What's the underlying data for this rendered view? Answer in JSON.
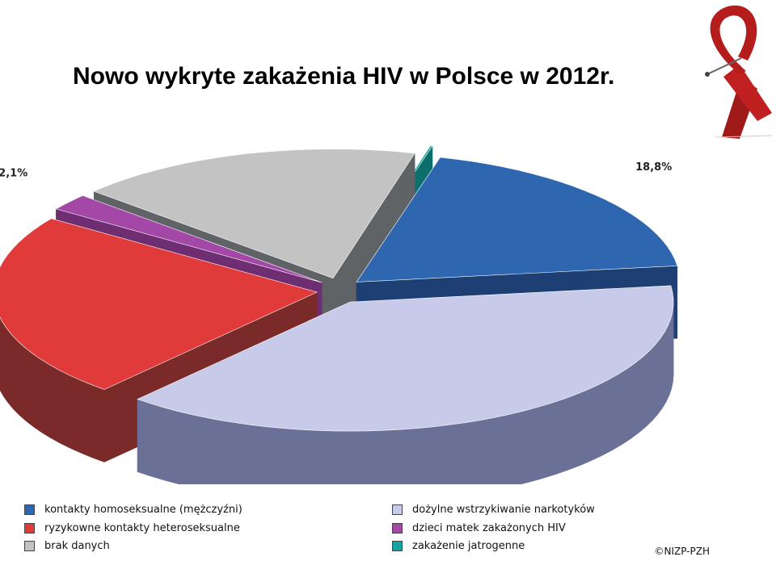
{
  "title": "Nowo wykryte zakażenia HIV w Polsce w 2012r.",
  "source": "©NIZP-PZH",
  "ribbon_icon": "aids-ribbon-icon",
  "chart_data": {
    "type": "pie",
    "three_d": true,
    "exploded": true,
    "unit": "%",
    "slices": [
      {
        "key": "homo",
        "label": "kontakty homoseksualne (mężczyźni)",
        "value": 18.8,
        "value_label": "18,8%",
        "color": "#2e67b0",
        "side_color": "#1d3f73"
      },
      {
        "key": "drugs",
        "label": "dożylne wstrzykiwanie narkotyków",
        "value": 38.4,
        "value_label": "38,4%",
        "color": "#c7cbe9",
        "side_color": "#6b7196"
      },
      {
        "key": "hetero",
        "label": "ryzykowne kontakty heteroseksualne",
        "value": 23.2,
        "value_label": "23,2%",
        "color": "#e03a3a",
        "side_color": "#7b2a2a"
      },
      {
        "key": "children",
        "label": "dzieci matek zakażonych HIV",
        "value": 2.1,
        "value_label": "2,1%",
        "color": "#a448a8",
        "side_color": "#6f2d72"
      },
      {
        "key": "nodata",
        "label": "brak danych",
        "value": 17.3,
        "value_label": "17,3%",
        "color": "#c3c3c3",
        "side_color": "#5f6366"
      },
      {
        "key": "iatro",
        "label": "zakażenie jatrogenne",
        "value": 0.1,
        "value_label": "0,1%",
        "color": "#14a5a0",
        "side_color": "#0c6f6c"
      }
    ],
    "legend": [
      {
        "label": "kontakty homoseksualne (mężczyźni)",
        "color": "#2e67b0"
      },
      {
        "label": "dożylne wstrzykiwanie narkotyków",
        "color": "#c7cbe9"
      },
      {
        "label": "ryzykowne kontakty heteroseksualne",
        "color": "#e03a3a"
      },
      {
        "label": "dzieci matek zakażonych HIV",
        "color": "#a448a8"
      },
      {
        "label": "brak danych",
        "color": "#c3c3c3"
      },
      {
        "label": "zakażenie jatrogenne",
        "color": "#14a5a0"
      }
    ],
    "legend_position": "bottom"
  }
}
